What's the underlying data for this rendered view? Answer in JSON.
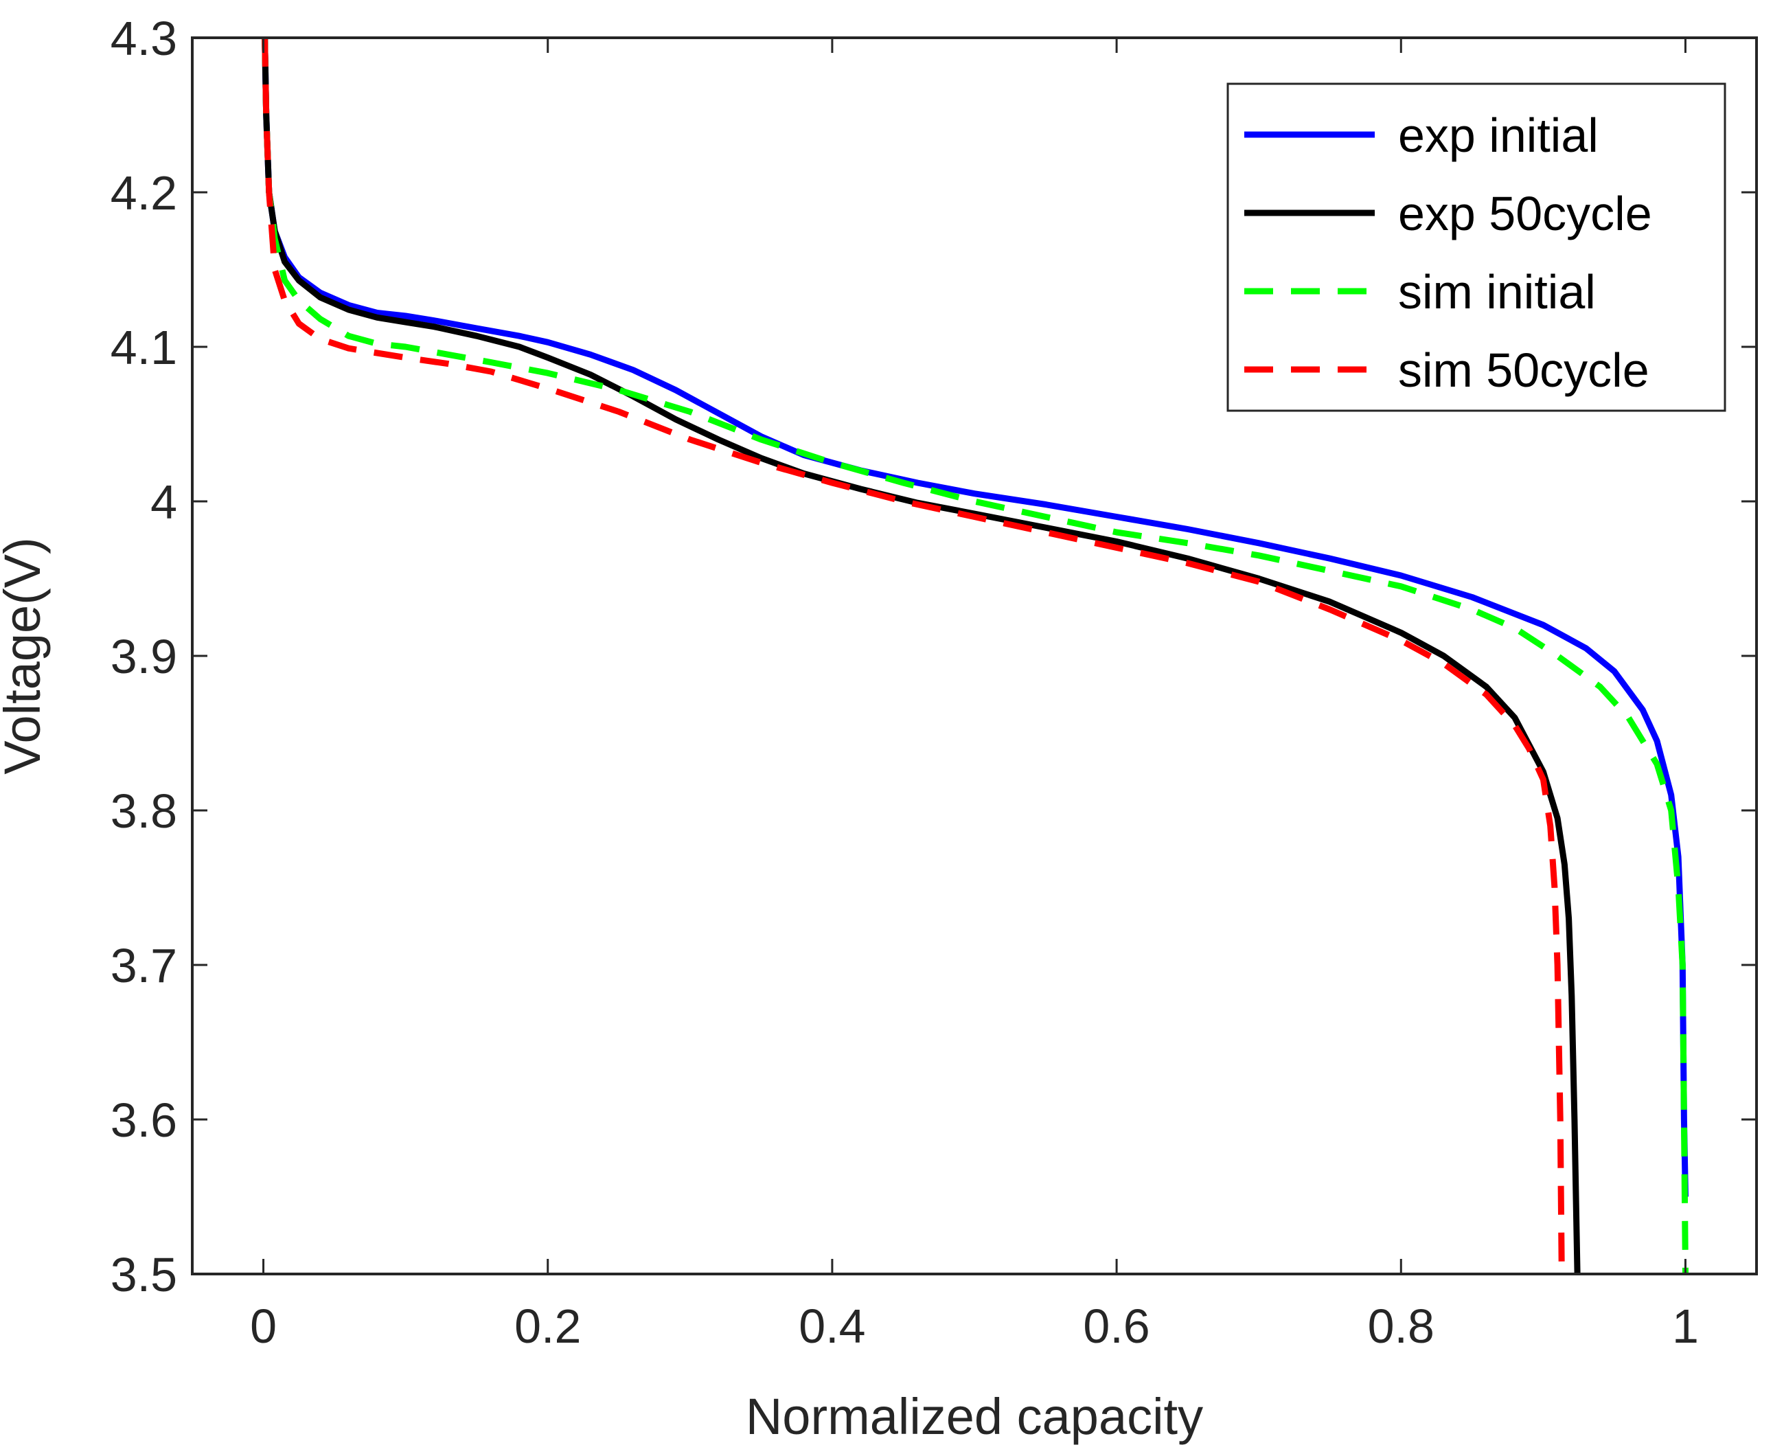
{
  "chart_data": {
    "type": "line",
    "title": "",
    "xlabel": "Normalized capacity",
    "ylabel": "Voltage(V)",
    "xlim": [
      -0.05,
      1.05
    ],
    "ylim": [
      3.5,
      4.3
    ],
    "xticks": [
      0,
      0.2,
      0.4,
      0.6,
      0.8,
      1
    ],
    "xtick_labels": [
      "0",
      "0.2",
      "0.4",
      "0.6",
      "0.8",
      "1"
    ],
    "yticks": [
      3.5,
      3.6,
      3.7,
      3.8,
      3.9,
      4.0,
      4.1,
      4.2,
      4.3
    ],
    "ytick_labels": [
      "3.5",
      "3.6",
      "3.7",
      "3.8",
      "3.9",
      "4",
      "4.1",
      "4.2",
      "4.3"
    ],
    "grid": false,
    "legend_position": "top-right",
    "series": [
      {
        "name": "exp initial",
        "color": "#0000ff",
        "style": "solid",
        "points": [
          [
            0.001,
            4.3
          ],
          [
            0.002,
            4.25
          ],
          [
            0.004,
            4.2
          ],
          [
            0.008,
            4.175
          ],
          [
            0.015,
            4.158
          ],
          [
            0.025,
            4.145
          ],
          [
            0.04,
            4.135
          ],
          [
            0.06,
            4.127
          ],
          [
            0.08,
            4.122
          ],
          [
            0.1,
            4.12
          ],
          [
            0.12,
            4.117
          ],
          [
            0.15,
            4.112
          ],
          [
            0.18,
            4.107
          ],
          [
            0.2,
            4.103
          ],
          [
            0.23,
            4.095
          ],
          [
            0.26,
            4.085
          ],
          [
            0.29,
            4.072
          ],
          [
            0.32,
            4.057
          ],
          [
            0.35,
            4.042
          ],
          [
            0.38,
            4.03
          ],
          [
            0.42,
            4.02
          ],
          [
            0.46,
            4.012
          ],
          [
            0.5,
            4.005
          ],
          [
            0.55,
            3.998
          ],
          [
            0.6,
            3.99
          ],
          [
            0.65,
            3.982
          ],
          [
            0.7,
            3.973
          ],
          [
            0.75,
            3.963
          ],
          [
            0.8,
            3.952
          ],
          [
            0.85,
            3.938
          ],
          [
            0.9,
            3.92
          ],
          [
            0.93,
            3.905
          ],
          [
            0.95,
            3.89
          ],
          [
            0.97,
            3.865
          ],
          [
            0.98,
            3.845
          ],
          [
            0.99,
            3.81
          ],
          [
            0.995,
            3.77
          ],
          [
            0.998,
            3.7
          ],
          [
            0.999,
            3.6
          ],
          [
            1.0,
            3.55
          ]
        ]
      },
      {
        "name": "exp 50cycle",
        "color": "#000000",
        "style": "solid",
        "points": [
          [
            0.001,
            4.3
          ],
          [
            0.002,
            4.25
          ],
          [
            0.004,
            4.2
          ],
          [
            0.008,
            4.175
          ],
          [
            0.015,
            4.155
          ],
          [
            0.025,
            4.143
          ],
          [
            0.04,
            4.132
          ],
          [
            0.06,
            4.124
          ],
          [
            0.08,
            4.119
          ],
          [
            0.1,
            4.116
          ],
          [
            0.12,
            4.113
          ],
          [
            0.15,
            4.107
          ],
          [
            0.18,
            4.1
          ],
          [
            0.2,
            4.093
          ],
          [
            0.23,
            4.082
          ],
          [
            0.26,
            4.068
          ],
          [
            0.29,
            4.053
          ],
          [
            0.32,
            4.04
          ],
          [
            0.35,
            4.028
          ],
          [
            0.38,
            4.018
          ],
          [
            0.42,
            4.008
          ],
          [
            0.46,
            3.999
          ],
          [
            0.5,
            3.992
          ],
          [
            0.55,
            3.983
          ],
          [
            0.6,
            3.974
          ],
          [
            0.65,
            3.963
          ],
          [
            0.7,
            3.95
          ],
          [
            0.75,
            3.935
          ],
          [
            0.8,
            3.915
          ],
          [
            0.83,
            3.9
          ],
          [
            0.86,
            3.88
          ],
          [
            0.88,
            3.86
          ],
          [
            0.9,
            3.825
          ],
          [
            0.91,
            3.795
          ],
          [
            0.915,
            3.765
          ],
          [
            0.918,
            3.73
          ],
          [
            0.92,
            3.68
          ],
          [
            0.922,
            3.6
          ],
          [
            0.924,
            3.5
          ]
        ]
      },
      {
        "name": "sim initial",
        "color": "#00ff00",
        "style": "dashed",
        "points": [
          [
            0.001,
            4.3
          ],
          [
            0.002,
            4.25
          ],
          [
            0.004,
            4.2
          ],
          [
            0.008,
            4.17
          ],
          [
            0.015,
            4.143
          ],
          [
            0.025,
            4.13
          ],
          [
            0.04,
            4.118
          ],
          [
            0.06,
            4.107
          ],
          [
            0.08,
            4.102
          ],
          [
            0.1,
            4.1
          ],
          [
            0.13,
            4.095
          ],
          [
            0.16,
            4.09
          ],
          [
            0.2,
            4.083
          ],
          [
            0.25,
            4.072
          ],
          [
            0.3,
            4.058
          ],
          [
            0.35,
            4.04
          ],
          [
            0.4,
            4.025
          ],
          [
            0.45,
            4.012
          ],
          [
            0.5,
            4.0
          ],
          [
            0.55,
            3.99
          ],
          [
            0.6,
            3.98
          ],
          [
            0.65,
            3.973
          ],
          [
            0.7,
            3.965
          ],
          [
            0.75,
            3.955
          ],
          [
            0.8,
            3.945
          ],
          [
            0.85,
            3.93
          ],
          [
            0.88,
            3.918
          ],
          [
            0.91,
            3.9
          ],
          [
            0.94,
            3.88
          ],
          [
            0.96,
            3.86
          ],
          [
            0.98,
            3.83
          ],
          [
            0.99,
            3.8
          ],
          [
            0.995,
            3.75
          ],
          [
            0.998,
            3.7
          ],
          [
            0.999,
            3.6
          ],
          [
            1.0,
            3.5
          ]
        ]
      },
      {
        "name": "sim 50cycle",
        "color": "#ff0000",
        "style": "dashed",
        "points": [
          [
            0.001,
            4.3
          ],
          [
            0.002,
            4.25
          ],
          [
            0.004,
            4.2
          ],
          [
            0.008,
            4.15
          ],
          [
            0.015,
            4.13
          ],
          [
            0.025,
            4.115
          ],
          [
            0.04,
            4.105
          ],
          [
            0.06,
            4.099
          ],
          [
            0.08,
            4.096
          ],
          [
            0.1,
            4.093
          ],
          [
            0.13,
            4.089
          ],
          [
            0.16,
            4.084
          ],
          [
            0.2,
            4.073
          ],
          [
            0.25,
            4.058
          ],
          [
            0.3,
            4.04
          ],
          [
            0.35,
            4.025
          ],
          [
            0.4,
            4.012
          ],
          [
            0.45,
            4.0
          ],
          [
            0.5,
            3.99
          ],
          [
            0.55,
            3.98
          ],
          [
            0.6,
            3.97
          ],
          [
            0.65,
            3.96
          ],
          [
            0.7,
            3.948
          ],
          [
            0.75,
            3.93
          ],
          [
            0.8,
            3.91
          ],
          [
            0.83,
            3.895
          ],
          [
            0.86,
            3.875
          ],
          [
            0.88,
            3.855
          ],
          [
            0.89,
            3.84
          ],
          [
            0.9,
            3.82
          ],
          [
            0.905,
            3.79
          ],
          [
            0.908,
            3.75
          ],
          [
            0.91,
            3.7
          ],
          [
            0.912,
            3.6
          ],
          [
            0.913,
            3.5
          ]
        ]
      }
    ]
  }
}
